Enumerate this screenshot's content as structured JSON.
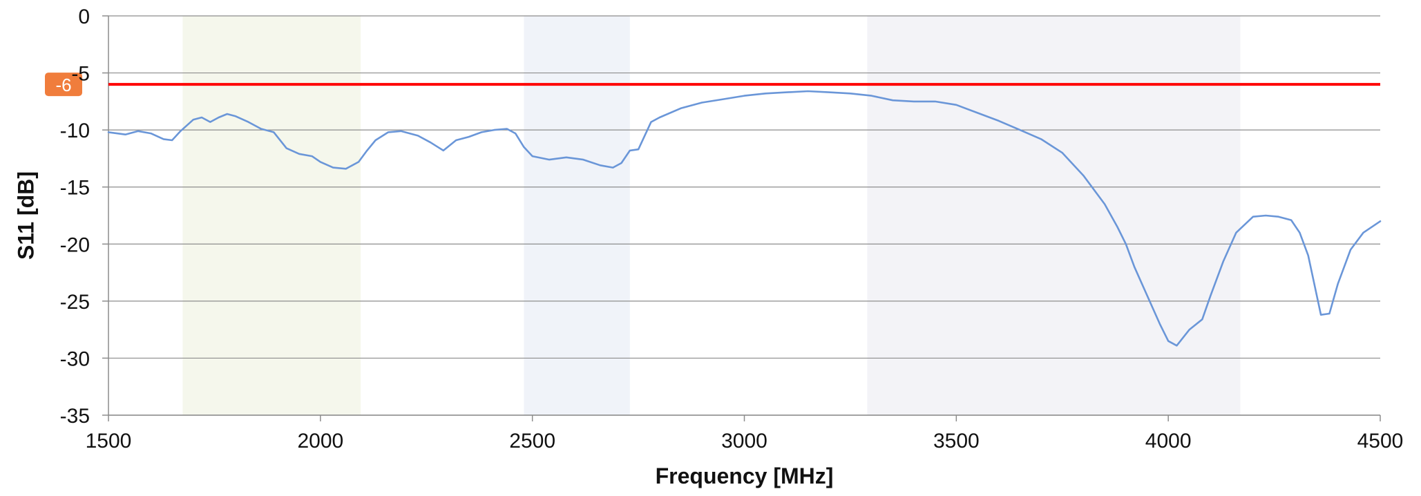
{
  "chart_data": {
    "type": "line",
    "title": "",
    "xlabel": "Frequency [MHz]",
    "ylabel": "S11 [dB]",
    "xlim": [
      1500,
      4500
    ],
    "ylim": [
      -35,
      0
    ],
    "xticks": [
      "1500",
      "2000",
      "2500",
      "3000",
      "3500",
      "4000",
      "4500"
    ],
    "yticks": [
      "0",
      "-5",
      "-10",
      "-15",
      "-20",
      "-25",
      "-30",
      "-35"
    ],
    "grid": "horizontal",
    "legend": "none",
    "threshold": {
      "value": -6,
      "label": "-6",
      "color": "#ff0000",
      "badge_color": "#f07d3c"
    },
    "bands": [
      {
        "start": 1675,
        "end": 2095,
        "color": "#f5f7ec"
      },
      {
        "start": 2480,
        "end": 2730,
        "color": "#f0f3f9"
      },
      {
        "start": 3290,
        "end": 4170,
        "color": "#f3f3f7"
      }
    ],
    "series": [
      {
        "color": "#6a96d8",
        "x": [
          1500,
          1540,
          1570,
          1600,
          1630,
          1650,
          1670,
          1700,
          1720,
          1740,
          1760,
          1780,
          1800,
          1830,
          1860,
          1890,
          1920,
          1950,
          1980,
          2000,
          2030,
          2060,
          2090,
          2110,
          2130,
          2160,
          2190,
          2230,
          2260,
          2290,
          2320,
          2350,
          2380,
          2410,
          2440,
          2460,
          2480,
          2500,
          2540,
          2580,
          2620,
          2660,
          2690,
          2710,
          2730,
          2750,
          2780,
          2800,
          2850,
          2900,
          2950,
          3000,
          3050,
          3100,
          3150,
          3200,
          3250,
          3300,
          3350,
          3400,
          3450,
          3500,
          3550,
          3600,
          3650,
          3700,
          3750,
          3800,
          3850,
          3880,
          3900,
          3920,
          3950,
          3980,
          4000,
          4020,
          4050,
          4080,
          4100,
          4130,
          4160,
          4200,
          4230,
          4260,
          4290,
          4310,
          4330,
          4360,
          4380,
          4400,
          4430,
          4460,
          4500
        ],
        "y": [
          -10.2,
          -10.4,
          -10.1,
          -10.3,
          -10.8,
          -10.9,
          -10.1,
          -9.1,
          -8.9,
          -9.3,
          -8.9,
          -8.6,
          -8.8,
          -9.3,
          -9.9,
          -10.2,
          -11.6,
          -12.1,
          -12.3,
          -12.8,
          -13.3,
          -13.4,
          -12.8,
          -11.8,
          -10.9,
          -10.2,
          -10.1,
          -10.5,
          -11.1,
          -11.8,
          -10.9,
          -10.6,
          -10.2,
          -10.0,
          -9.9,
          -10.3,
          -11.5,
          -12.3,
          -12.6,
          -12.4,
          -12.6,
          -13.1,
          -13.3,
          -12.9,
          -11.8,
          -11.7,
          -9.3,
          -8.9,
          -8.1,
          -7.6,
          -7.3,
          -7.0,
          -6.8,
          -6.7,
          -6.6,
          -6.7,
          -6.8,
          -7.0,
          -7.4,
          -7.5,
          -7.5,
          -7.8,
          -8.5,
          -9.2,
          -10.0,
          -10.8,
          -12.0,
          -14.0,
          -16.5,
          -18.5,
          -20.0,
          -22.0,
          -24.5,
          -27.0,
          -28.5,
          -28.9,
          -27.5,
          -26.6,
          -24.5,
          -21.5,
          -19.0,
          -17.6,
          -17.5,
          -17.6,
          -17.9,
          -19.0,
          -21.0,
          -26.2,
          -26.1,
          -23.5,
          -20.5,
          -19.0,
          -18.0
        ]
      }
    ]
  }
}
